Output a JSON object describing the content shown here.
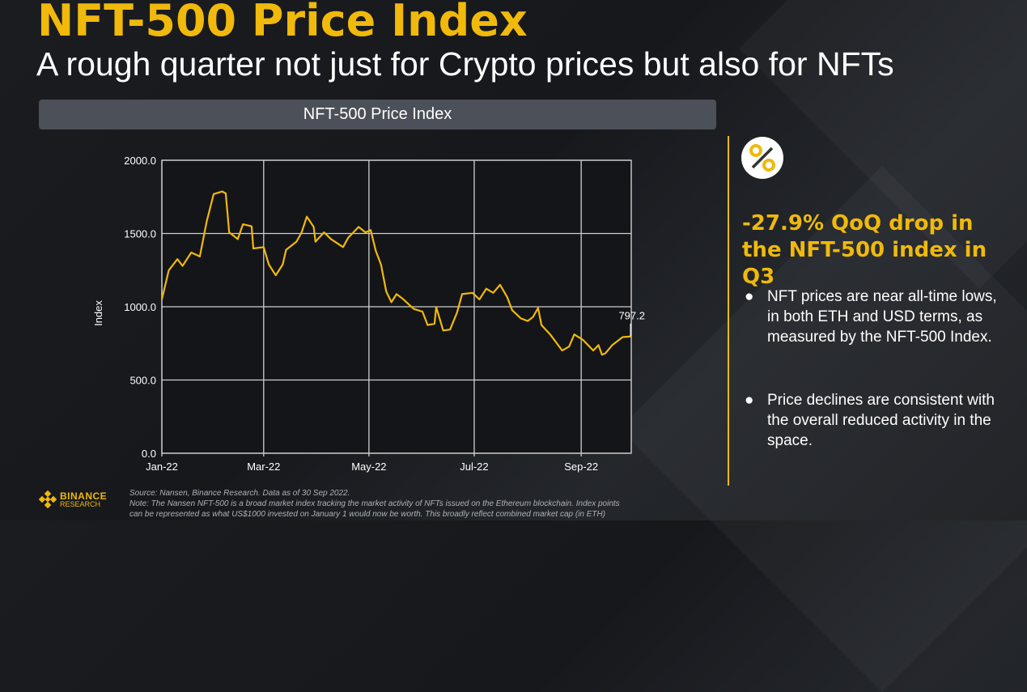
{
  "slide": {
    "title": "NFT-500 Price Index",
    "subtitle": "A rough quarter not just for Crypto prices but also for NFTs",
    "chart_header": "NFT-500 Price Index",
    "accent_color": "#F0B90B"
  },
  "panel": {
    "icon": "percent-icon",
    "headline": "-27.9% QoQ drop in the NFT-500 index in Q3",
    "bullets": [
      "NFT prices are near all-time lows, in both ETH and USD terms, as measured by the NFT-500 Index.",
      "Price declines are consistent with the overall reduced activity in the space."
    ]
  },
  "footer": {
    "logo_name": "BINANCE",
    "logo_sub": "RESEARCH",
    "source": "Source: Nansen, Binance Research. Data as of 30 Sep 2022.",
    "note": "Note: The Nansen NFT-500 is a broad market index tracking the market activity of NFTs issued on the Ethereum blockchain. Index points",
    "note_cont": "can be represented as what US$1000 invested on January 1 would now be worth. This broadly reflect combined market cap (in ETH)"
  },
  "chart_data": {
    "type": "line",
    "title": "NFT-500 Price Index",
    "xlabel": "",
    "ylabel": "Index",
    "xlim": [
      "2022-01-01",
      "2022-09-30"
    ],
    "ylim": [
      0,
      2000
    ],
    "grid": true,
    "x_tick_labels": [
      "Jan-22",
      "Mar-22",
      "May-22",
      "Jul-22",
      "Sep-22"
    ],
    "x_tick_dates": [
      "2022-01-01",
      "2022-03-01",
      "2022-05-01",
      "2022-07-01",
      "2022-09-01"
    ],
    "y_ticks": [
      0,
      500,
      1000,
      1500,
      2000
    ],
    "y_tick_labels": [
      "0.0",
      "500.0",
      "1000.0",
      "1500.0",
      "2000.0"
    ],
    "line_color": "#F0B90B",
    "annotation": {
      "date": "2022-09-30",
      "value": 797.2,
      "label": "797.2"
    },
    "series": [
      {
        "x": [
          "2022-01-01",
          "2022-01-05",
          "2022-01-10",
          "2022-01-13",
          "2022-01-18",
          "2022-01-23",
          "2022-01-27",
          "2022-01-31",
          "2022-02-05",
          "2022-02-07",
          "2022-02-09",
          "2022-02-14",
          "2022-02-17",
          "2022-02-22",
          "2022-02-23",
          "2022-03-01",
          "2022-03-04",
          "2022-03-08",
          "2022-03-12",
          "2022-03-14",
          "2022-03-20",
          "2022-03-23",
          "2022-03-26",
          "2022-03-30",
          "2022-03-31",
          "2022-04-05",
          "2022-04-09",
          "2022-04-16",
          "2022-04-19",
          "2022-04-25",
          "2022-04-29",
          "2022-05-02",
          "2022-05-05",
          "2022-05-08",
          "2022-05-11",
          "2022-05-14",
          "2022-05-17",
          "2022-05-21",
          "2022-05-27",
          "2022-06-01",
          "2022-06-04",
          "2022-06-08",
          "2022-06-09",
          "2022-06-13",
          "2022-06-17",
          "2022-06-21",
          "2022-06-24",
          "2022-06-30",
          "2022-07-04",
          "2022-07-08",
          "2022-07-12",
          "2022-07-16",
          "2022-07-20",
          "2022-07-23",
          "2022-07-28",
          "2022-08-01",
          "2022-08-04",
          "2022-08-07",
          "2022-08-09",
          "2022-08-14",
          "2022-08-21",
          "2022-08-25",
          "2022-08-28",
          "2022-09-02",
          "2022-09-08",
          "2022-09-11",
          "2022-09-13",
          "2022-09-15",
          "2022-09-19",
          "2022-09-25",
          "2022-09-30"
        ],
        "y": [
          1050,
          1248,
          1325,
          1279,
          1370,
          1343,
          1582,
          1769,
          1787,
          1774,
          1508,
          1462,
          1563,
          1549,
          1398,
          1407,
          1288,
          1215,
          1288,
          1389,
          1444,
          1508,
          1615,
          1545,
          1444,
          1508,
          1462,
          1407,
          1472,
          1545,
          1508,
          1523,
          1380,
          1288,
          1105,
          1031,
          1086,
          1050,
          985,
          967,
          875,
          884,
          998,
          838,
          844,
          958,
          1086,
          1095,
          1050,
          1123,
          1095,
          1150,
          1068,
          976,
          921,
          903,
          930,
          991,
          875,
          811,
          701,
          728,
          811,
          774,
          701,
          738,
          673,
          682,
          738,
          793,
          797.2
        ]
      }
    ]
  }
}
